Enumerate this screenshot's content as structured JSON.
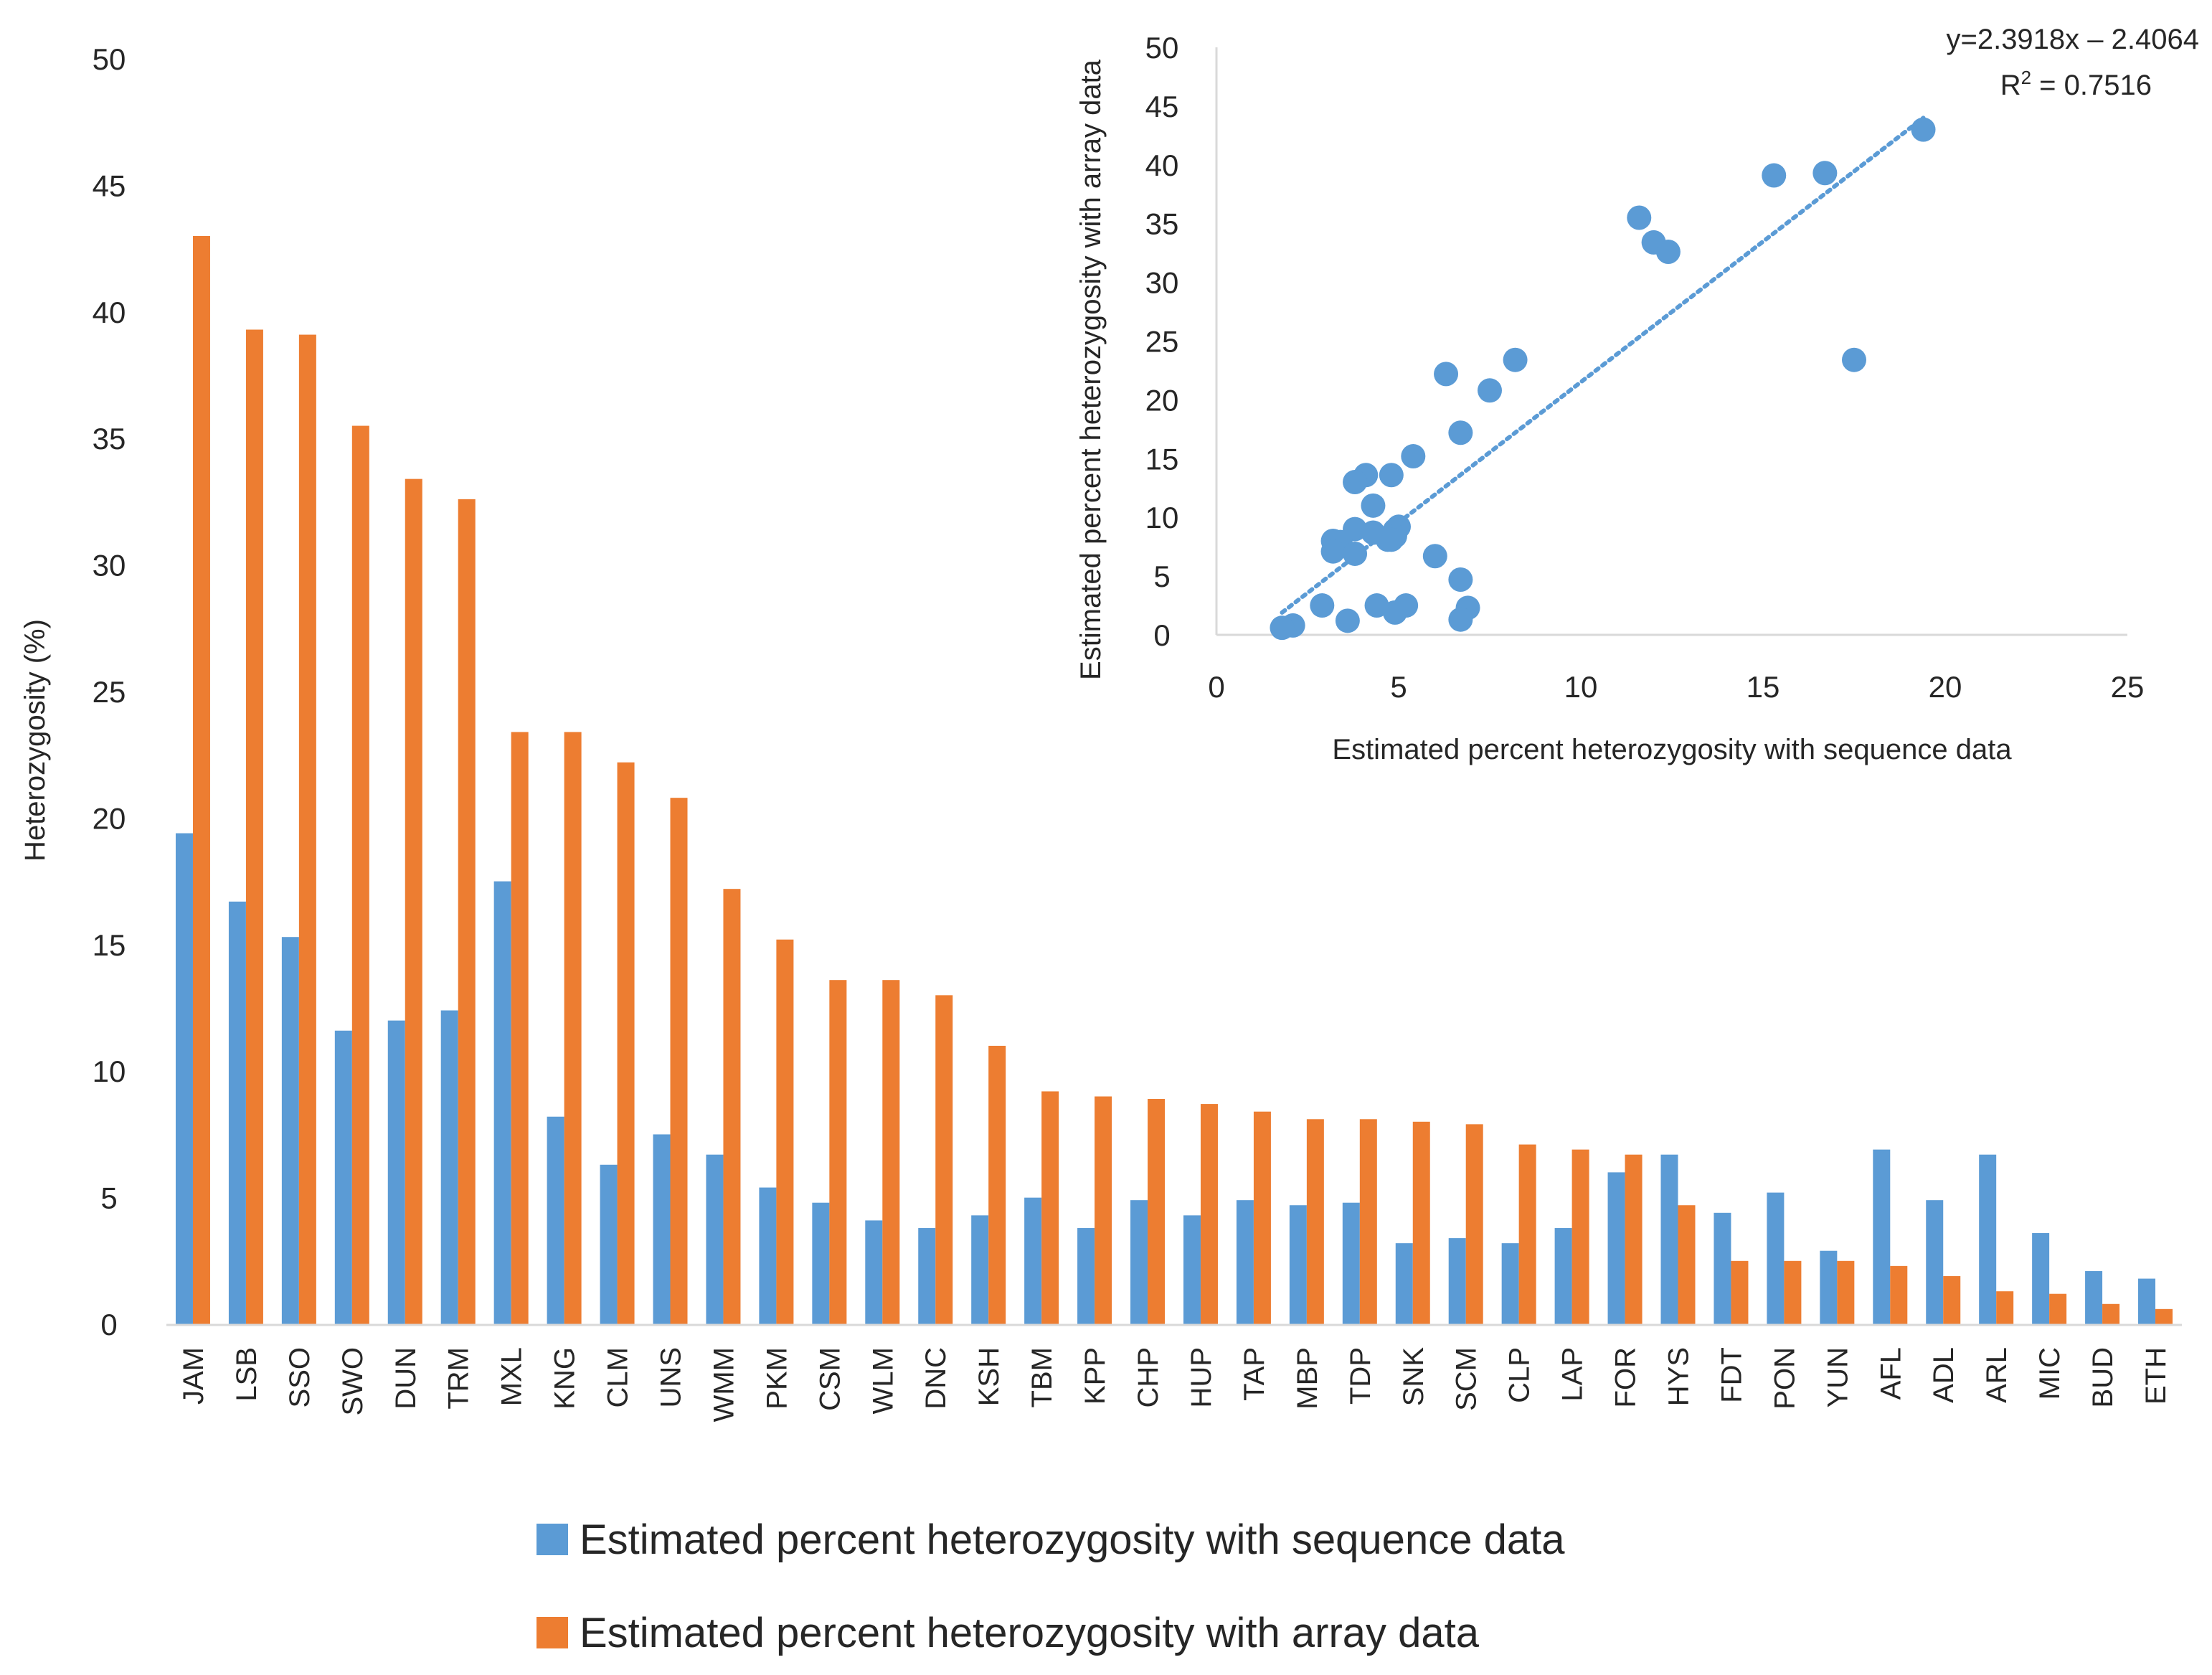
{
  "chart_data": [
    {
      "type": "bar",
      "ylabel": "Heterozygosity (%)",
      "ylim": [
        0,
        50
      ],
      "yticks": [
        0,
        5,
        10,
        15,
        20,
        25,
        30,
        35,
        40,
        45,
        50
      ],
      "categories": [
        "JAM",
        "LSB",
        "SSO",
        "SWO",
        "DUN",
        "TRM",
        "MXL",
        "KNG",
        "CLM",
        "UNS",
        "WMM",
        "PKM",
        "CSM",
        "WLM",
        "DNC",
        "KSH",
        "TBM",
        "KPP",
        "CHP",
        "HUP",
        "TAP",
        "MBP",
        "TDP",
        "SNK",
        "SCM",
        "CLP",
        "LAP",
        "FOR",
        "HYS",
        "FDT",
        "PON",
        "YUN",
        "AFL",
        "ADL",
        "ARL",
        "MIC",
        "BUD",
        "ETH"
      ],
      "series": [
        {
          "name": "Estimated percent heterozygosity with sequence data",
          "color": "#5B9BD5",
          "values": [
            19.4,
            16.7,
            15.3,
            11.6,
            12.0,
            12.4,
            17.5,
            8.2,
            6.3,
            7.5,
            6.7,
            5.4,
            4.8,
            4.1,
            3.8,
            4.3,
            5.0,
            3.8,
            4.9,
            4.3,
            4.9,
            4.7,
            4.8,
            3.2,
            3.4,
            3.2,
            3.8,
            6.0,
            6.7,
            4.4,
            5.2,
            2.9,
            6.9,
            4.9,
            6.7,
            3.6,
            2.1,
            1.8
          ]
        },
        {
          "name": "Estimated percent heterozygosity with array data",
          "color": "#ED7D31",
          "values": [
            43.0,
            39.3,
            39.1,
            35.5,
            33.4,
            32.6,
            23.4,
            23.4,
            22.2,
            20.8,
            17.2,
            15.2,
            13.6,
            13.6,
            13.0,
            11.0,
            9.2,
            9.0,
            8.9,
            8.7,
            8.4,
            8.1,
            8.1,
            8.0,
            7.9,
            7.1,
            6.9,
            6.7,
            4.7,
            2.5,
            2.5,
            2.5,
            2.3,
            1.9,
            1.3,
            1.2,
            0.8,
            0.6
          ]
        }
      ],
      "legend_position": "bottom"
    },
    {
      "type": "scatter",
      "xlabel": "Estimated percent heterozygosity with sequence data",
      "ylabel": "Estimated percent heterozygosity with array data",
      "xlim": [
        0,
        25
      ],
      "ylim": [
        0,
        50
      ],
      "xticks": [
        0,
        5,
        10,
        15,
        20,
        25
      ],
      "yticks": [
        0,
        5,
        10,
        15,
        20,
        25,
        30,
        35,
        40,
        45,
        50
      ],
      "color": "#5B9BD5",
      "trendline": {
        "equation": "y=2.3918x – 2.4064",
        "r2_label": "R",
        "r2_sup": "2",
        "r2_value": " = 0.7516",
        "slope": 2.3918,
        "intercept": -2.4064,
        "x_range": [
          1.8,
          19.4
        ]
      },
      "points": [
        [
          19.4,
          43.0
        ],
        [
          16.7,
          39.3
        ],
        [
          15.3,
          39.1
        ],
        [
          11.6,
          35.5
        ],
        [
          12.0,
          33.4
        ],
        [
          12.4,
          32.6
        ],
        [
          17.5,
          23.4
        ],
        [
          8.2,
          23.4
        ],
        [
          6.3,
          22.2
        ],
        [
          7.5,
          20.8
        ],
        [
          6.7,
          17.2
        ],
        [
          5.4,
          15.2
        ],
        [
          4.8,
          13.6
        ],
        [
          4.1,
          13.6
        ],
        [
          3.8,
          13.0
        ],
        [
          4.3,
          11.0
        ],
        [
          5.0,
          9.2
        ],
        [
          3.8,
          9.0
        ],
        [
          4.9,
          8.9
        ],
        [
          4.3,
          8.7
        ],
        [
          4.9,
          8.4
        ],
        [
          4.7,
          8.1
        ],
        [
          4.8,
          8.1
        ],
        [
          3.2,
          8.0
        ],
        [
          3.4,
          7.9
        ],
        [
          3.2,
          7.1
        ],
        [
          3.8,
          6.9
        ],
        [
          6.0,
          6.7
        ],
        [
          6.7,
          4.7
        ],
        [
          4.4,
          2.5
        ],
        [
          5.2,
          2.5
        ],
        [
          2.9,
          2.5
        ],
        [
          6.9,
          2.3
        ],
        [
          4.9,
          1.9
        ],
        [
          6.7,
          1.3
        ],
        [
          3.6,
          1.2
        ],
        [
          2.1,
          0.8
        ],
        [
          1.8,
          0.6
        ]
      ]
    }
  ]
}
